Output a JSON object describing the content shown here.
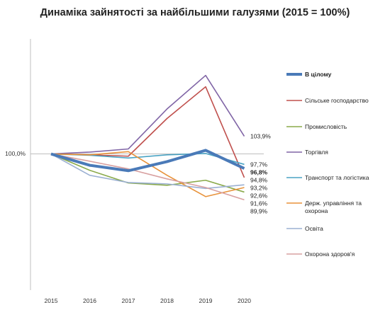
{
  "chart_data": {
    "type": "line",
    "title": "Динаміка зайнятості за найбільшими галузями (2015 = 100%)",
    "xlabel": "",
    "ylabel": "",
    "categories": [
      "2015",
      "2016",
      "2017",
      "2018",
      "2019",
      "2020"
    ],
    "ylim": [
      70,
      123
    ],
    "y_tick_label": "100,0%",
    "y_tick_value": 100,
    "grid": false,
    "legend_position": "right",
    "series": [
      {
        "name": "В цілому",
        "color": "#4a7ab8",
        "width": 4,
        "bold": true,
        "values": [
          100,
          97.5,
          96.3,
          98.3,
          100.8,
          96.8
        ],
        "end_label": "96,8%"
      },
      {
        "name": "Сільське господарство",
        "color": "#c0504d",
        "width": 1.6,
        "bold": false,
        "values": [
          100,
          99.8,
          99.5,
          107.8,
          114.8,
          94.8
        ],
        "end_label": "94,8%"
      },
      {
        "name": "Промисловість",
        "color": "#8aaa4a",
        "width": 1.6,
        "bold": false,
        "values": [
          100,
          96.4,
          93.6,
          93.1,
          94.2,
          91.6
        ],
        "end_label": "91,6%"
      },
      {
        "name": "Торгівля",
        "color": "#8065a6",
        "width": 1.6,
        "bold": false,
        "values": [
          100,
          100.4,
          101.1,
          109.9,
          117.3,
          103.9
        ],
        "end_label": "103,9%"
      },
      {
        "name": "Транспорт та логістика",
        "color": "#4aa3c3",
        "width": 1.6,
        "bold": false,
        "values": [
          100,
          99.7,
          99.1,
          99.8,
          100.1,
          97.7
        ],
        "end_label": "97,7%"
      },
      {
        "name": "Держ. управління та охорона",
        "color": "#e8923a",
        "width": 1.6,
        "bold": false,
        "values": [
          100,
          99.8,
          100.5,
          95.3,
          90.6,
          92.6
        ],
        "end_label": "92,6%"
      },
      {
        "name": "Освіта",
        "color": "#9bb0d2",
        "width": 1.6,
        "bold": false,
        "values": [
          100,
          95.3,
          93.7,
          93.4,
          92.4,
          93.2
        ],
        "end_label": "93,2%"
      },
      {
        "name": "Охорона здоров'я",
        "color": "#d8a0a0",
        "width": 1.6,
        "bold": false,
        "values": [
          100,
          98.4,
          96.7,
          94.5,
          92.6,
          89.9
        ],
        "end_label": "89,9%"
      }
    ]
  }
}
